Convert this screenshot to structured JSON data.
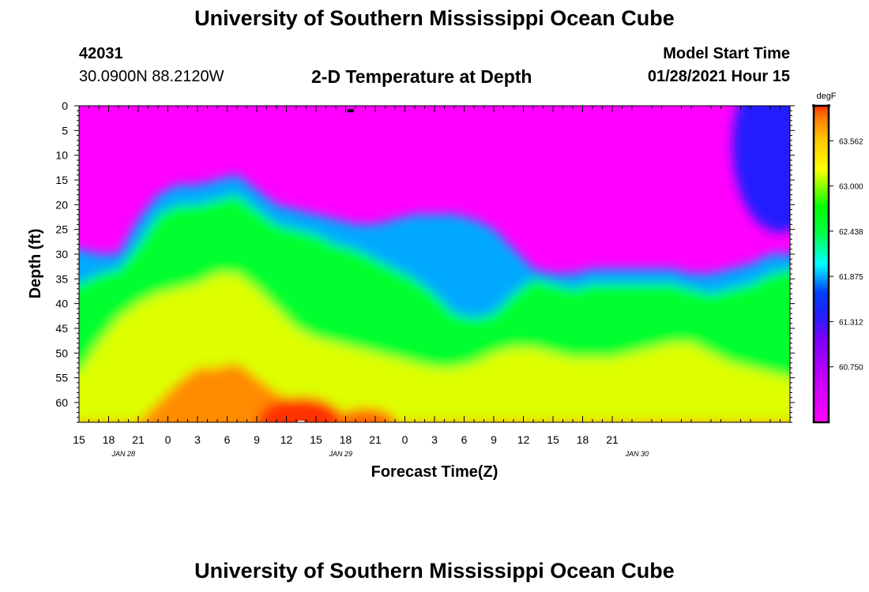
{
  "header": {
    "title": "University of Southern Mississippi Ocean Cube",
    "station_id": "42031",
    "station_coords": "30.0900N 88.2120W",
    "subtitle": "2-D Temperature at Depth",
    "model_label": "Model Start Time",
    "model_time": "01/28/2021 Hour 15"
  },
  "footer": {
    "title": "University of Southern Mississippi Ocean Cube"
  },
  "chart_data": {
    "type": "heatmap",
    "title": "2-D Temperature at Depth",
    "xlabel": "Forecast Time(Z)",
    "ylabel": "Depth (ft)",
    "x_hours": [
      0,
      72
    ],
    "x_tick_labels": [
      "15",
      "18",
      "21",
      "0",
      "3",
      "6",
      "9",
      "12",
      "15",
      "18",
      "21",
      "0",
      "3",
      "6",
      "9",
      "12",
      "15",
      "18",
      "21"
    ],
    "x_tick_step_hours": 3,
    "date_labels": [
      {
        "label": "JAN 28",
        "hour": 4.5
      },
      {
        "label": "JAN 29",
        "hour": 26.5
      },
      {
        "label": "JAN 30",
        "hour": 56.5
      }
    ],
    "ylim": [
      0,
      64
    ],
    "y_tick_labels": [
      "0",
      "5",
      "10",
      "15",
      "20",
      "25",
      "30",
      "35",
      "40",
      "45",
      "50",
      "55",
      "60"
    ],
    "y_tick_step": 5,
    "colorbar": {
      "unit": "degF",
      "range": [
        60.3,
        64.0
      ],
      "tick_labels": [
        "63.562",
        "63.000",
        "62.438",
        "61.875",
        "61.312",
        "60.750"
      ]
    },
    "isotherm_depths_ft": {
      "hours": [
        0,
        2,
        4,
        6,
        8,
        10,
        12,
        14,
        16,
        18,
        20,
        22,
        24,
        26,
        28,
        30,
        32,
        34,
        36,
        38,
        40,
        42,
        44,
        46,
        48,
        50,
        52,
        54,
        56,
        58,
        60,
        62,
        64,
        66,
        68,
        70,
        72
      ],
      "t62_0": [
        29,
        30,
        30,
        23,
        18,
        16,
        16,
        15,
        14,
        17,
        20,
        21,
        22,
        23,
        24,
        24,
        23,
        22,
        22,
        22,
        23,
        25,
        29,
        33,
        34,
        34,
        33,
        33,
        33,
        33,
        33,
        34,
        34,
        33,
        32,
        30,
        30
      ],
      "t62_6": [
        36,
        34,
        33,
        28,
        22,
        20,
        20,
        19,
        18,
        21,
        24,
        25,
        26,
        28,
        29,
        31,
        33,
        35,
        38,
        42,
        43,
        42,
        38,
        35,
        36,
        37,
        36,
        36,
        36,
        36,
        36,
        37,
        38,
        37,
        36,
        34,
        33
      ],
      "t63_2": [
        54,
        48,
        43,
        40,
        38,
        37,
        36,
        34,
        34,
        37,
        41,
        45,
        47,
        48,
        49,
        50,
        51,
        52,
        53,
        53,
        52,
        50,
        49,
        49,
        50,
        51,
        51,
        51,
        50,
        49,
        48,
        48,
        50,
        52,
        53,
        54,
        55
      ],
      "t63_8": [
        64,
        64,
        64,
        64,
        60,
        56,
        53,
        53,
        52,
        55,
        58,
        60,
        61,
        62,
        63,
        64,
        64,
        64,
        64,
        64,
        64,
        64,
        64,
        64,
        64,
        64,
        64,
        64,
        64,
        64,
        64,
        64,
        64,
        64,
        64,
        64,
        64
      ]
    },
    "markers": [
      {
        "hour": 27.5,
        "depth": 1,
        "color": "#000000"
      },
      {
        "hour": 22.5,
        "depth": 64,
        "color": "#ffffff"
      }
    ]
  }
}
